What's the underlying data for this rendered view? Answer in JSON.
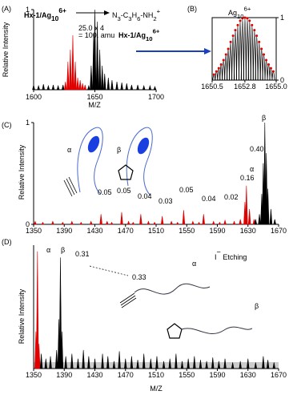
{
  "chart_data": [
    {
      "type": "spectrum",
      "label": "(A)",
      "xlabel": "M/Z",
      "ylabel": "Relative Intensity",
      "xlim": [
        1600,
        1700
      ],
      "ylim": [
        0,
        1
      ],
      "xticks": [
        1600,
        1650,
        1700
      ],
      "yticks": [
        1
      ],
      "series": [
        {
          "color": "#e00000",
          "x": [
            1626,
            1628,
            1630,
            1632,
            1634,
            1636,
            1638,
            1640,
            1642
          ],
          "values": [
            0.1,
            0.35,
            0.5,
            0.68,
            0.35,
            0.15,
            0.12,
            0.08,
            0.06
          ]
        },
        {
          "color": "#000000",
          "x": [
            1600,
            1604,
            1608,
            1612,
            1616,
            1620,
            1624,
            1645,
            1647,
            1649,
            1650,
            1652,
            1654,
            1656,
            1658,
            1661,
            1664,
            1668,
            1672,
            1676,
            1680,
            1685,
            1690,
            1695,
            1699
          ],
          "values": [
            0.06,
            0.05,
            0.07,
            0.05,
            0.06,
            0.05,
            0.06,
            0.05,
            0.3,
            0.7,
            1.0,
            0.85,
            0.5,
            0.3,
            0.2,
            0.15,
            0.12,
            0.1,
            0.09,
            0.08,
            0.06,
            0.06,
            0.05,
            0.05,
            0.04
          ]
        }
      ],
      "annotations": [
        [
          {
            "normal": "Hx-1/Ag"
          },
          {
            "sub": "10"
          },
          {
            "sup": "6+"
          }
        ],
        "25.0 x 4",
        "= 100. amu",
        [
          {
            "normal": "N"
          },
          {
            "sub": "3"
          },
          {
            "normal": "-C"
          },
          {
            "sub": "3"
          },
          {
            "normal": "H"
          },
          {
            "sub": "6"
          },
          {
            "normal": "-NH"
          },
          {
            "sub": "2"
          },
          {
            "sup": "+"
          }
        ],
        [
          {
            "normal": "Hx-1/Ag"
          },
          {
            "sub": "10"
          },
          {
            "sup": "6+"
          }
        ]
      ]
    },
    {
      "type": "isotope",
      "label": "(B)",
      "xlim": [
        1650.5,
        1655.0
      ],
      "ylim": [
        0,
        1
      ],
      "xticks": [
        1650.5,
        1652.8,
        {
          "value": 1655.0,
          "label": "1655.0"
        }
      ],
      "yticks": [
        0,
        1
      ],
      "series": [
        {
          "color": "#000000",
          "x": [
            1650.63,
            1650.8,
            1650.97,
            1651.13,
            1651.3,
            1651.47,
            1651.63,
            1651.8,
            1651.97,
            1652.13,
            1652.3,
            1652.47,
            1652.63,
            1652.8,
            1652.97,
            1653.13,
            1653.3,
            1653.47,
            1653.63,
            1653.8,
            1653.97,
            1654.13,
            1654.3,
            1654.47,
            1654.63,
            1654.8
          ],
          "values": [
            0.09,
            0.14,
            0.19,
            0.25,
            0.32,
            0.41,
            0.5,
            0.61,
            0.71,
            0.8,
            0.88,
            0.95,
            0.99,
            1.0,
            0.99,
            0.95,
            0.88,
            0.8,
            0.71,
            0.61,
            0.5,
            0.41,
            0.32,
            0.25,
            0.19,
            0.14
          ]
        },
        {
          "color": "#e00000",
          "x": [
            1650.63,
            1650.8,
            1650.97,
            1651.13,
            1651.3,
            1651.47,
            1651.63,
            1651.8,
            1651.97,
            1652.13,
            1652.3,
            1652.47,
            1652.63,
            1652.8,
            1652.97,
            1653.13,
            1653.3,
            1653.47,
            1653.63,
            1653.8,
            1653.97,
            1654.13,
            1654.3,
            1654.47,
            1654.63,
            1654.8
          ],
          "values": [
            0.09,
            0.14,
            0.19,
            0.25,
            0.32,
            0.41,
            0.5,
            0.61,
            0.71,
            0.8,
            0.88,
            0.95,
            0.99,
            1.0,
            0.99,
            0.95,
            0.88,
            0.8,
            0.71,
            0.61,
            0.5,
            0.41,
            0.32,
            0.25,
            0.19,
            0.14
          ]
        }
      ],
      "annotations": [
        [
          {
            "normal": "Ag"
          },
          {
            "sub": "10"
          },
          {
            "sup": "6+"
          }
        ]
      ]
    },
    {
      "type": "spectrum",
      "label": "(C)",
      "ylabel": "Relative Intensity",
      "xlim": [
        1350,
        1670
      ],
      "ylim": [
        0,
        1
      ],
      "xticks": [
        1350,
        1390,
        1430,
        1470,
        1510,
        1550,
        1590,
        1630,
        1670
      ],
      "yticks": [
        0,
        1
      ],
      "series": [
        {
          "color": "#e00000",
          "x": [
            1352,
            1362,
            1375,
            1388,
            1400,
            1412,
            1425,
            1438,
            1446,
            1452,
            1465,
            1474,
            1480,
            1490,
            1500,
            1508,
            1518,
            1530,
            1538,
            1546,
            1558,
            1566,
            1572,
            1585,
            1593,
            1600,
            1612,
            1620,
            1626,
            1628,
            1632,
            1638
          ],
          "values": [
            0.03,
            0.02,
            0.03,
            0.02,
            0.03,
            0.02,
            0.03,
            0.1,
            0.03,
            0.02,
            0.12,
            0.03,
            0.02,
            0.1,
            0.03,
            0.02,
            0.08,
            0.03,
            0.02,
            0.14,
            0.03,
            0.02,
            0.1,
            0.03,
            0.02,
            0.04,
            0.03,
            0.05,
            0.22,
            0.38,
            0.15,
            0.05
          ]
        },
        {
          "color": "#000000",
          "x": [
            1640,
            1645,
            1648,
            1650,
            1652,
            1654,
            1656,
            1660,
            1665
          ],
          "values": [
            0.05,
            0.1,
            0.3,
            0.6,
            1.0,
            0.7,
            0.35,
            0.15,
            0.05
          ]
        }
      ],
      "annotations": [
        "α",
        "β",
        "0.05",
        "0.05",
        "0.04",
        "0.03",
        "0.05",
        "0.04",
        "0.02",
        "0.16",
        "0.40",
        "α",
        "β"
      ]
    },
    {
      "type": "spectrum",
      "label": "(D)",
      "xlabel": "M/Z",
      "ylabel": "Relative Intensity",
      "xlim": [
        1350,
        1670
      ],
      "ylim": [
        0,
        1
      ],
      "xticks": [
        1350,
        1390,
        1430,
        1470,
        1510,
        1550,
        1590,
        1630,
        1670
      ],
      "series": [
        {
          "color": "#e00000",
          "x": [
            1353,
            1355,
            1357
          ],
          "values": [
            0.3,
            0.95,
            0.2
          ]
        },
        {
          "color": "#000000",
          "x": [
            1360,
            1366,
            1372,
            1380,
            1383,
            1385,
            1387,
            1392,
            1400,
            1408,
            1415,
            1422,
            1430,
            1440,
            1447,
            1455,
            1462,
            1470,
            1478,
            1486,
            1494,
            1503,
            1511,
            1520,
            1528,
            1536,
            1544,
            1552,
            1560,
            1568,
            1576,
            1584,
            1592,
            1600,
            1610,
            1620,
            1630,
            1640,
            1650,
            1656,
            1664
          ],
          "values": [
            0.12,
            0.08,
            0.1,
            0.15,
            0.4,
            0.9,
            0.3,
            0.1,
            0.12,
            0.08,
            0.15,
            0.1,
            0.08,
            0.12,
            0.1,
            0.06,
            0.14,
            0.08,
            0.1,
            0.07,
            0.12,
            0.08,
            0.1,
            0.06,
            0.08,
            0.12,
            0.06,
            0.08,
            0.1,
            0.07,
            0.06,
            0.09,
            0.06,
            0.08,
            0.05,
            0.06,
            0.08,
            0.05,
            0.1,
            0.07,
            0.05
          ]
        }
      ],
      "annotations": [
        "α",
        "β",
        "0.31",
        "0.33",
        [
          {
            "normal": "I"
          },
          {
            "sup": "−"
          },
          {
            "normal": " Etching"
          }
        ],
        "α",
        "β"
      ]
    }
  ]
}
